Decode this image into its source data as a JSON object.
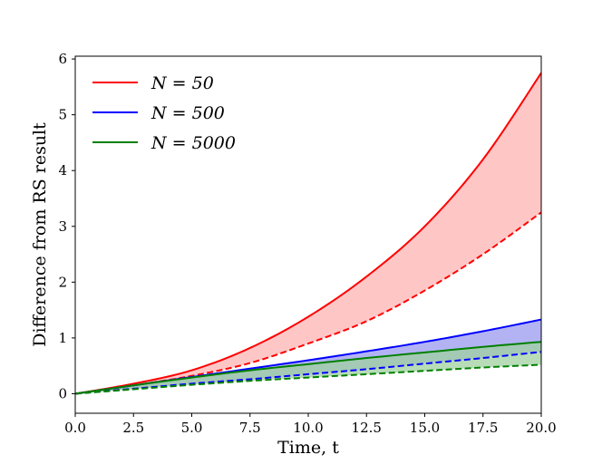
{
  "chart_data": {
    "type": "line",
    "title": "",
    "xlabel": "Time, t",
    "ylabel": "Difference from RS result",
    "xlim": [
      0,
      20
    ],
    "ylim": [
      -0.35,
      6.05
    ],
    "xticks": [
      0,
      2.5,
      5,
      7.5,
      10,
      12.5,
      15,
      17.5,
      20
    ],
    "xtick_labels": [
      "0.0",
      "2.5",
      "5.0",
      "7.5",
      "10.0",
      "12.5",
      "15.0",
      "17.5",
      "20.0"
    ],
    "yticks": [
      0,
      1,
      2,
      3,
      4,
      5,
      6
    ],
    "ytick_labels": [
      "0",
      "1",
      "2",
      "3",
      "4",
      "5",
      "6"
    ],
    "grid": false,
    "legend_position": "top-left",
    "x": [
      0,
      2.5,
      5,
      7.5,
      10,
      12.5,
      15,
      17.5,
      20
    ],
    "series": [
      {
        "name": "N = 50",
        "color": "#ff0000",
        "fill_color": "#ffb3b3",
        "upper": [
          0,
          0.18,
          0.42,
          0.82,
          1.38,
          2.1,
          3.0,
          4.2,
          5.75
        ],
        "lower": [
          0,
          0.15,
          0.32,
          0.55,
          0.9,
          1.3,
          1.85,
          2.5,
          3.25
        ]
      },
      {
        "name": "N = 500",
        "color": "#0000ff",
        "fill_color": "#9a9af0",
        "upper": [
          0,
          0.15,
          0.3,
          0.45,
          0.6,
          0.76,
          0.93,
          1.12,
          1.33
        ],
        "lower": [
          0,
          0.09,
          0.18,
          0.26,
          0.35,
          0.44,
          0.54,
          0.64,
          0.75
        ]
      },
      {
        "name": "N = 5000",
        "color": "#008000",
        "fill_color": "#9fd09f",
        "upper": [
          0,
          0.15,
          0.29,
          0.42,
          0.53,
          0.64,
          0.74,
          0.84,
          0.93
        ],
        "lower": [
          0,
          0.08,
          0.16,
          0.23,
          0.29,
          0.35,
          0.41,
          0.47,
          0.52
        ]
      }
    ]
  }
}
